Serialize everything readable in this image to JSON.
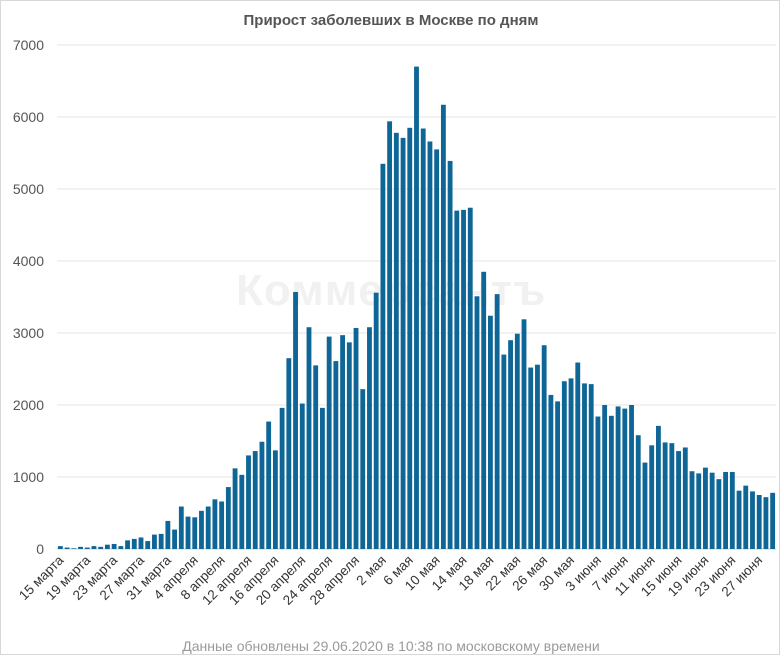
{
  "chart_data": {
    "type": "bar",
    "title": "Прирост заболевших в Москве по дням",
    "watermark": "Коммерсантъ",
    "footer": "Данные обновлены 29.06.2020 в 10:38 по московскому времени",
    "color": "#0e6696",
    "ylim": [
      0,
      7000
    ],
    "yticks": [
      0,
      1000,
      2000,
      3000,
      4000,
      5000,
      6000,
      7000
    ],
    "grid": true,
    "legend": "none",
    "xtick_labels": [
      "15 марта",
      "19 марта",
      "23 марта",
      "27 марта",
      "31 марта",
      "4 апреля",
      "8 апреля",
      "12 апреля",
      "16 апреля",
      "20 апреля",
      "24 апреля",
      "28 апреля",
      "2 мая",
      "6 мая",
      "10 мая",
      "14 мая",
      "18 мая",
      "22 мая",
      "26 мая",
      "30 мая",
      "3 июня",
      "7 июня",
      "11 июня",
      "15 июня",
      "19 июня",
      "23 июня",
      "27 июня"
    ],
    "tick_every": 4,
    "values": [
      40,
      20,
      10,
      30,
      20,
      40,
      30,
      60,
      70,
      40,
      120,
      140,
      160,
      110,
      200,
      210,
      390,
      270,
      590,
      450,
      440,
      530,
      590,
      690,
      660,
      860,
      1120,
      1030,
      1300,
      1360,
      1490,
      1770,
      1370,
      1960,
      2650,
      3570,
      2020,
      3080,
      2550,
      1960,
      2950,
      2610,
      2970,
      2870,
      3070,
      2220,
      3080,
      3560,
      5350,
      5940,
      5780,
      5710,
      5850,
      6700,
      5840,
      5660,
      5550,
      6170,
      5390,
      4700,
      4710,
      4740,
      3510,
      3850,
      3240,
      3540,
      2700,
      2900,
      2990,
      3190,
      2520,
      2560,
      2830,
      2140,
      2050,
      2330,
      2370,
      2590,
      2300,
      2290,
      1840,
      2000,
      1850,
      1980,
      1950,
      2000,
      1580,
      1200,
      1440,
      1710,
      1480,
      1470,
      1360,
      1410,
      1080,
      1050,
      1130,
      1060,
      970,
      1070,
      1070,
      810,
      880,
      800,
      750,
      720,
      780
    ]
  }
}
